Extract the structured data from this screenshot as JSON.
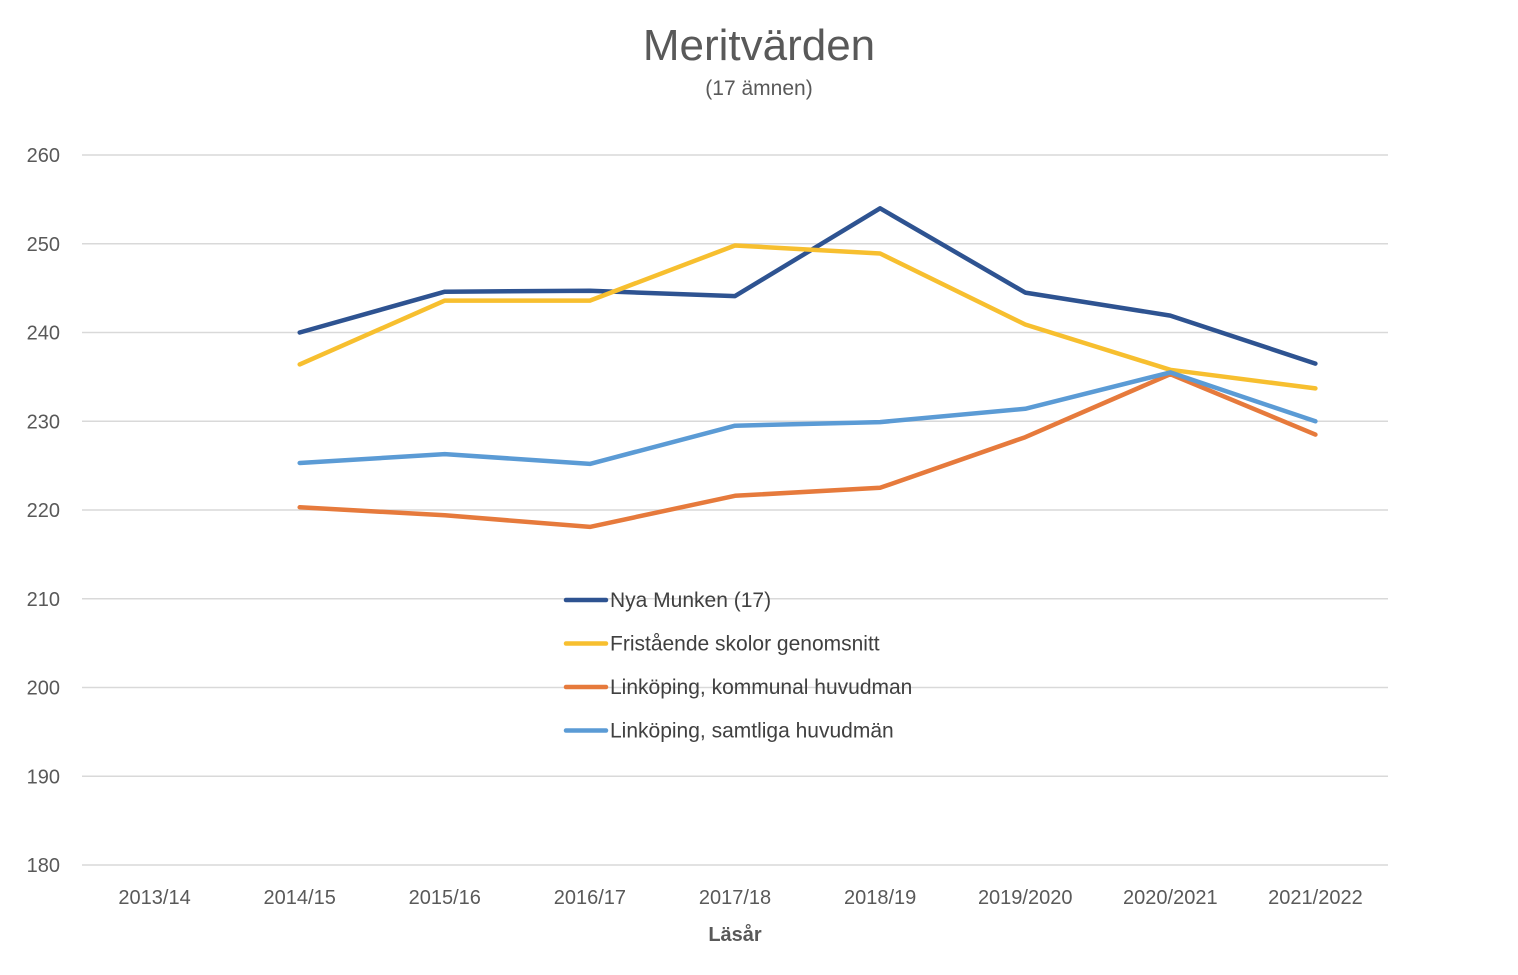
{
  "chart_data": {
    "type": "line",
    "title": "Meritvärden",
    "subtitle": "(17 ämnen)",
    "xlabel": "Läsår",
    "ylabel": "",
    "ylim": [
      180,
      260
    ],
    "yticks": [
      260,
      250,
      240,
      230,
      220,
      210,
      200,
      190,
      180
    ],
    "grid": true,
    "legend_placement": "center",
    "categories": [
      "2013/14",
      "2014/15",
      "2015/16",
      "2016/17",
      "2017/18",
      "2018/19",
      "2019/2020",
      "2020/2021",
      "2021/2022"
    ],
    "series": [
      {
        "name": "Nya Munken (17)",
        "color": "#2e5391",
        "values": [
          null,
          240.0,
          244.6,
          244.7,
          244.1,
          254.0,
          244.5,
          241.9,
          236.5
        ]
      },
      {
        "name": "Fristående skolor genomsnitt",
        "color": "#f7bf2f",
        "values": [
          null,
          236.4,
          243.6,
          243.6,
          249.8,
          248.9,
          240.9,
          235.8,
          233.7
        ]
      },
      {
        "name": "Linköping, kommunal huvudman",
        "color": "#e67a3c",
        "values": [
          null,
          220.3,
          219.4,
          218.1,
          221.6,
          222.5,
          228.2,
          235.3,
          228.5
        ]
      },
      {
        "name": "Linköping, samtliga huvudmän",
        "color": "#5b9bd5",
        "values": [
          null,
          225.3,
          226.3,
          225.2,
          229.5,
          229.9,
          231.4,
          235.5,
          230.0
        ]
      }
    ]
  }
}
